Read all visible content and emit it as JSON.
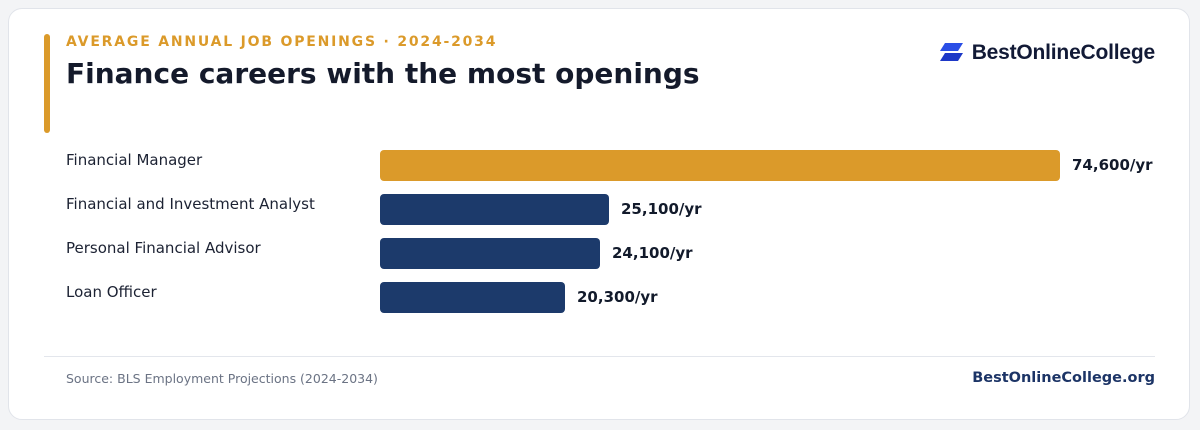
{
  "header": {
    "eyebrow": "AVERAGE ANNUAL JOB OPENINGS · 2024-2034",
    "title": "Finance careers with the most openings",
    "brand": "BestOnlineCollege",
    "brand_icon": "stacked-chevron-logo-icon"
  },
  "colors": {
    "accent": "#db9a2a",
    "bar_highlight": "#db9a2a",
    "bar_default": "#1c3a6b",
    "logo": "#2a4ee6"
  },
  "chart_data": {
    "type": "bar",
    "orientation": "horizontal",
    "title": "Finance careers with the most openings",
    "subtitle": "AVERAGE ANNUAL JOB OPENINGS · 2024-2034",
    "categories": [
      "Financial Manager",
      "Financial and Investment Analyst",
      "Personal Financial Advisor",
      "Loan Officer"
    ],
    "values": [
      74600,
      25100,
      24100,
      20300
    ],
    "value_labels": [
      "74,600/yr",
      "25,100/yr",
      "24,100/yr",
      "20,300/yr"
    ],
    "highlight_index": 0,
    "xlim": [
      0,
      74600
    ],
    "grid": false,
    "legend": "none"
  },
  "footer": {
    "source": "Source: BLS Employment Projections (2024-2034)",
    "site": "BestOnlineCollege.org"
  }
}
